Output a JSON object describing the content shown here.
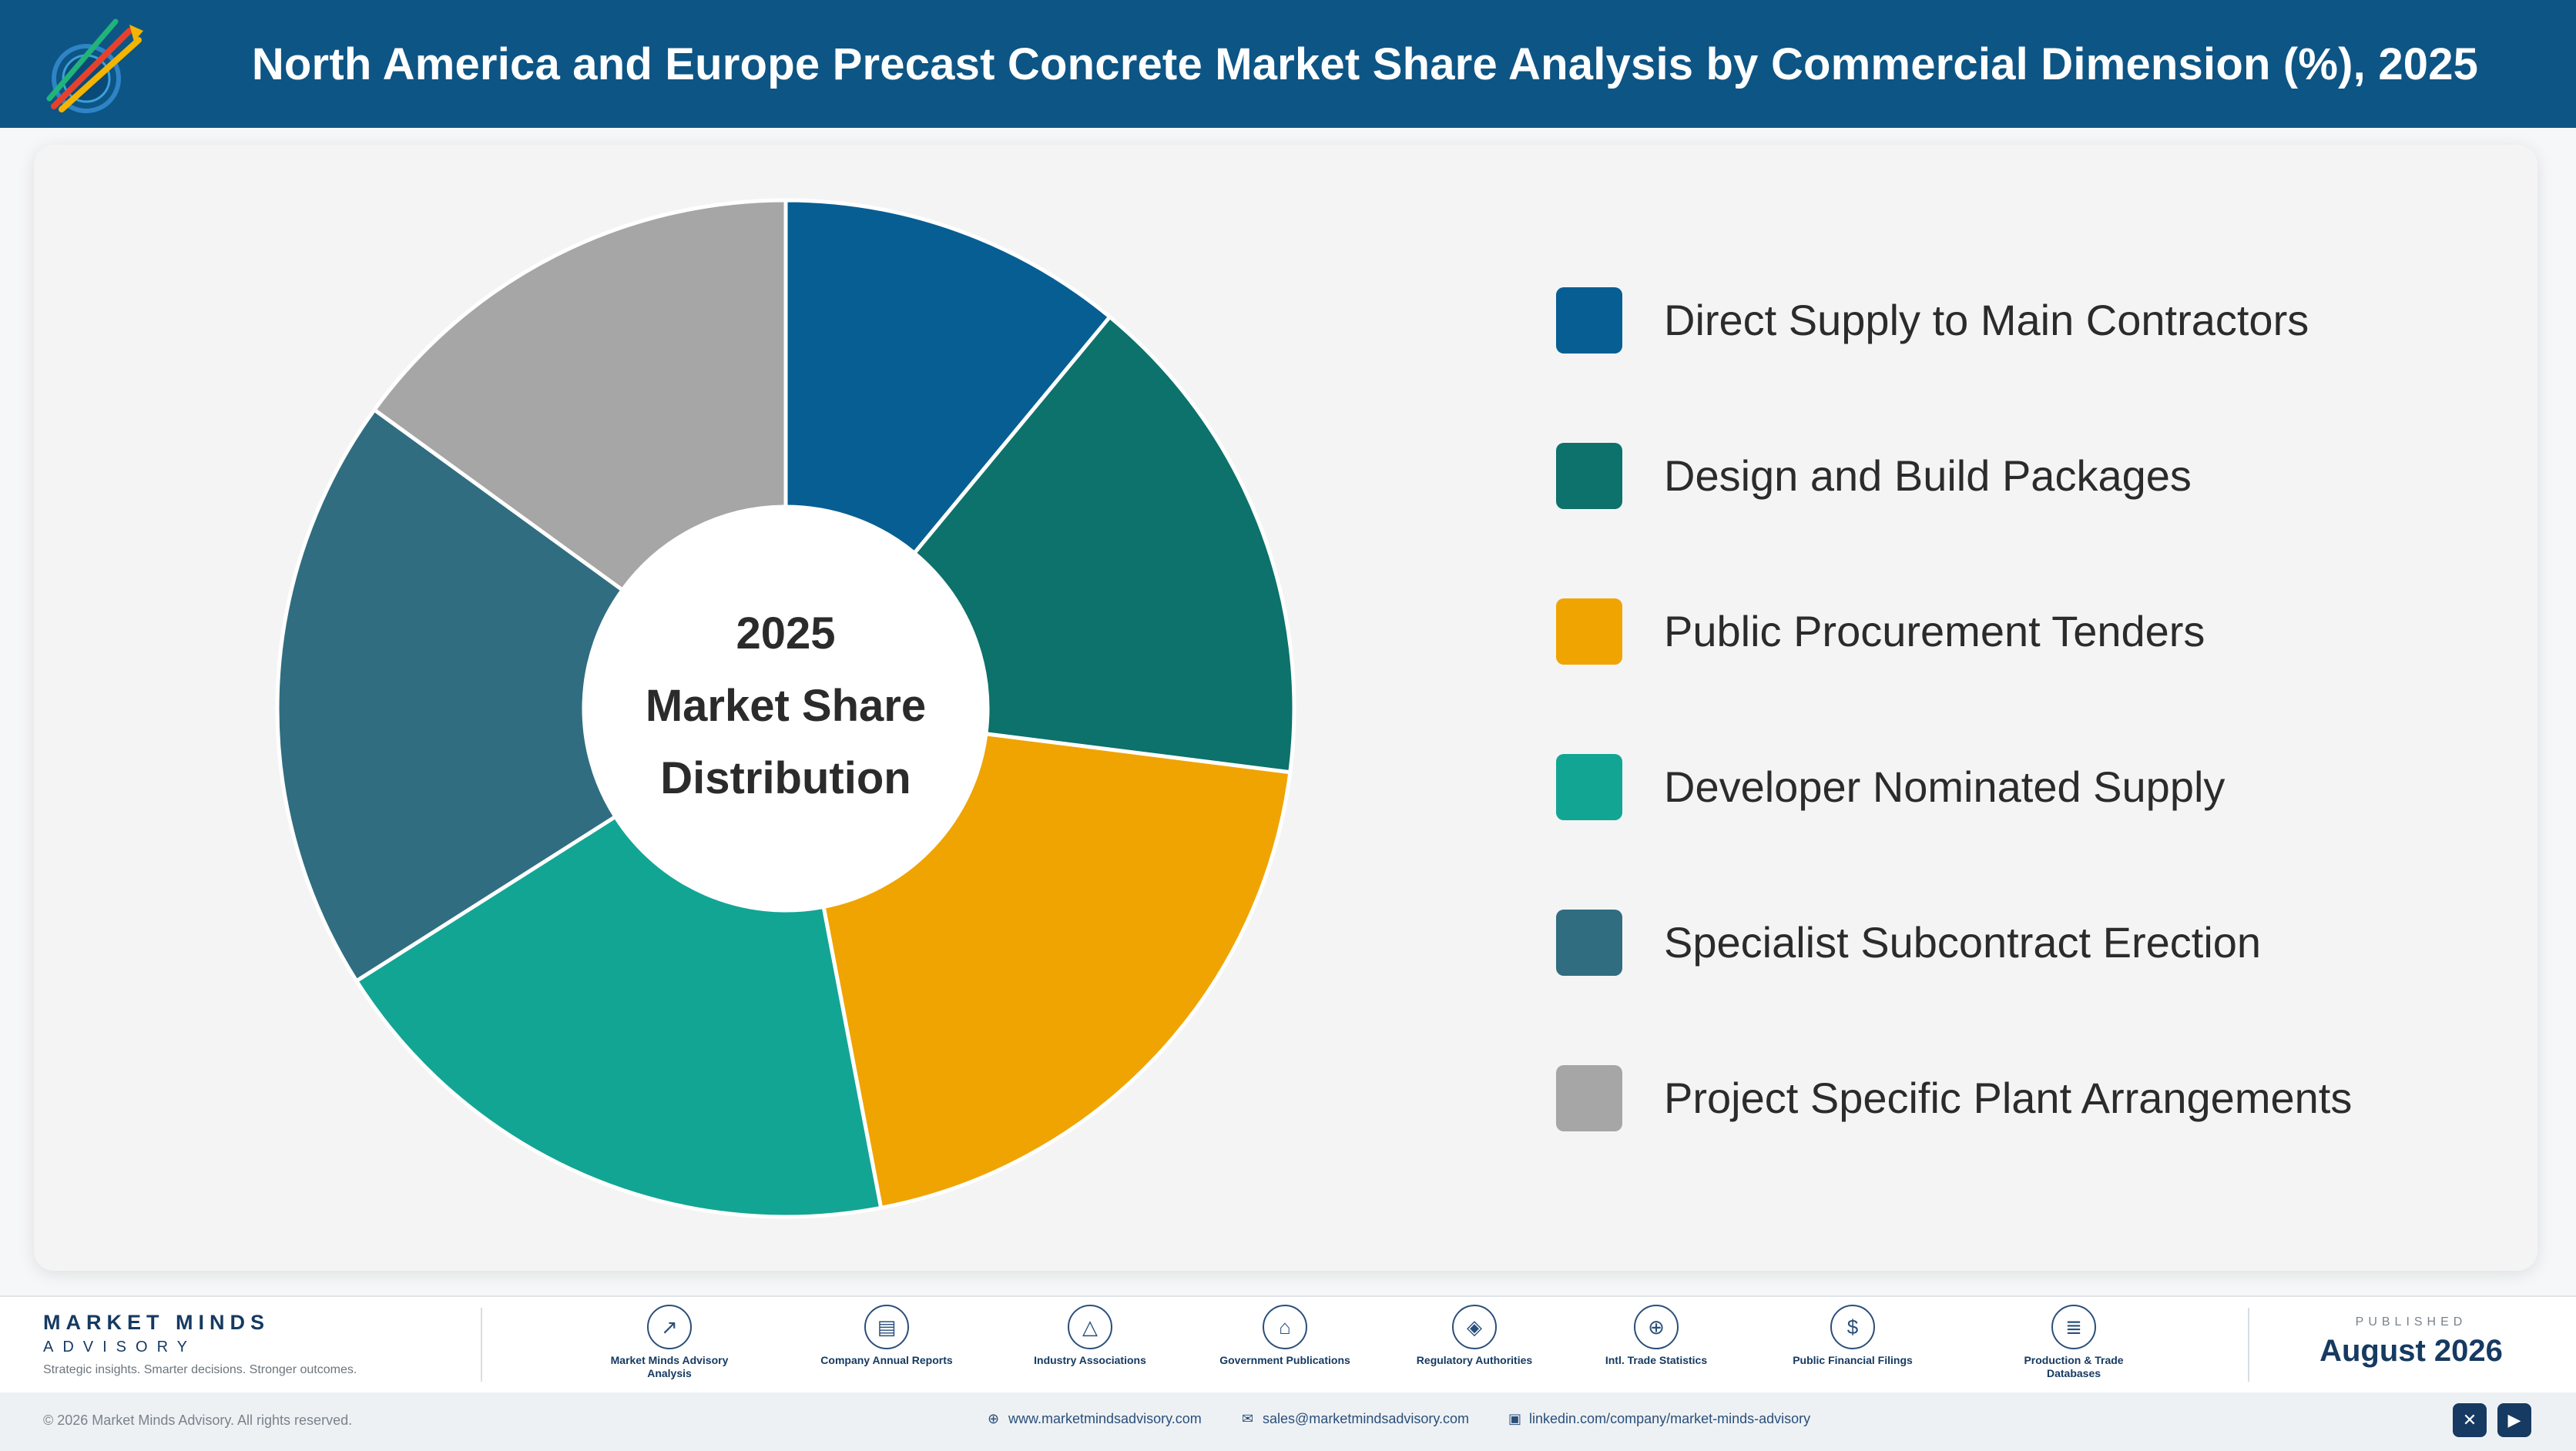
{
  "header": {
    "title": "North America and Europe Precast Concrete Market Share Analysis by Commercial Dimension (%), 2025"
  },
  "chart_data": {
    "type": "pie",
    "donut": true,
    "center_text": [
      "2025",
      "Market Share",
      "Distribution"
    ],
    "legend_position": "right",
    "categories": [
      "Direct Supply to Main Contractors",
      "Design and Build Packages",
      "Public Procurement Tenders",
      "Developer Nominated Supply",
      "Specialist Subcontract Erection",
      "Project Specific Plant Arrangements"
    ],
    "values": [
      11,
      16,
      20,
      19,
      19,
      15
    ],
    "colors": [
      "#075e93",
      "#0c726b",
      "#f0a402",
      "#12a594",
      "#306d80",
      "#a6a6a6"
    ]
  },
  "footer": {
    "brand": {
      "name": "MARKET MINDS",
      "sub": "ADVISORY",
      "tagline": "Strategic insights. Smarter decisions. Stronger outcomes."
    },
    "sources": [
      {
        "label": "Market Minds Advisory Analysis",
        "icon": "chart-line-icon",
        "glyph": "↗"
      },
      {
        "label": "Company Annual Reports",
        "icon": "document-icon",
        "glyph": "▤"
      },
      {
        "label": "Industry Associations",
        "icon": "network-icon",
        "glyph": "△"
      },
      {
        "label": "Government Publications",
        "icon": "government-building-icon",
        "glyph": "⌂"
      },
      {
        "label": "Regulatory Authorities",
        "icon": "shield-icon",
        "glyph": "◈"
      },
      {
        "label": "Intl. Trade Statistics",
        "icon": "globe-icon",
        "glyph": "⊕"
      },
      {
        "label": "Public Financial Filings",
        "icon": "dollar-coin-icon",
        "glyph": "$"
      },
      {
        "label": "Production & Trade Databases",
        "icon": "database-icon",
        "glyph": "≣"
      }
    ],
    "published_label": "PUBLISHED",
    "published_date": "August 2026",
    "copyright": "© 2026 Market Minds Advisory. All rights reserved.",
    "website": "www.marketmindsadvisory.com",
    "email": "sales@marketmindsadvisory.com",
    "linkedin": "linkedin.com/company/market-minds-advisory"
  }
}
